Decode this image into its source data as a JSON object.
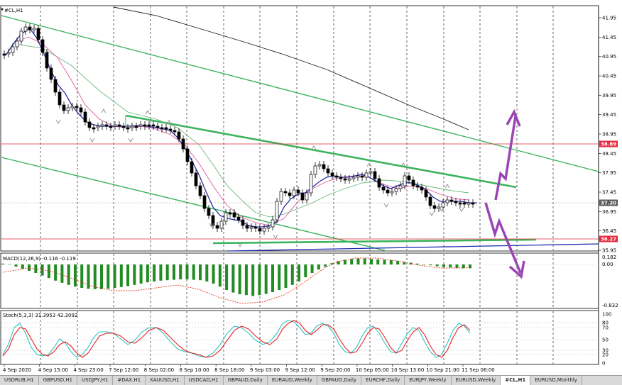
{
  "window": {
    "symbol_label": "#CL,H1"
  },
  "main": {
    "price_levels": [
      "41.95",
      "41.45",
      "40.95",
      "40.45",
      "39.95",
      "39.45",
      "38.95",
      "38.45",
      "37.95",
      "37.45",
      "36.95",
      "36.45",
      "35.95"
    ],
    "markers": [
      {
        "text": "38.69",
        "color": "#e8283c"
      },
      {
        "text": "37.20",
        "color": "#595959"
      },
      {
        "text": "36.27",
        "color": "#e8283c"
      }
    ]
  },
  "macd": {
    "label": "MACD(12,26,9) -0.116 -0.119",
    "levels": [
      "0.182",
      "0.00",
      "-0.832"
    ],
    "histogram": [
      0.02,
      0.01,
      -0.05,
      -0.1,
      -0.15,
      -0.2,
      -0.26,
      -0.32,
      -0.38,
      -0.43,
      -0.48,
      -0.52,
      -0.55,
      -0.57,
      -0.58,
      -0.58,
      -0.57,
      -0.55,
      -0.53,
      -0.51,
      -0.48,
      -0.45,
      -0.42,
      -0.4,
      -0.38,
      -0.37,
      -0.36,
      -0.35,
      -0.35,
      -0.36,
      -0.37,
      -0.4,
      -0.45,
      -0.52,
      -0.6,
      -0.66,
      -0.7,
      -0.72,
      -0.74,
      -0.72,
      -0.69,
      -0.65,
      -0.6,
      -0.55,
      -0.48,
      -0.4,
      -0.3,
      -0.2,
      -0.12,
      -0.05,
      0.03,
      0.08,
      0.11,
      0.13,
      0.14,
      0.14,
      0.13,
      0.12,
      0.11,
      0.1,
      0.08,
      0.06,
      0.04,
      0.02,
      0.0,
      -0.02,
      -0.04,
      -0.06,
      -0.07,
      -0.08,
      -0.09,
      -0.09
    ]
  },
  "stoch": {
    "label": "Stoch(5,3,3) 31.3953 42.3092",
    "levels": [
      "100",
      "80",
      "70",
      "50",
      "30",
      "20",
      "0"
    ]
  },
  "time_axis": [
    "4 Sep 2020",
    "4 Sep 15:00",
    "4 Sep 23:00",
    "7 Sep 12:00",
    "8 Sep 02:00",
    "8 Sep 10:00",
    "8 Sep 18:00",
    "9 Sep 03:00",
    "9 Sep 12:00",
    "9 Sep 20:00",
    "10 Sep 05:00",
    "10 Sep 13:00",
    "10 Sep 21:00",
    "11 Sep 06:00"
  ],
  "tabs": [
    "USDRUB,H1",
    "GBPUSD,H1",
    "USDJPY,H1",
    "#DAX,H1",
    "XAUUSD,H1",
    "USDCAD,H1",
    "GBPAUD,Daily",
    "EURAUD,Weekly",
    "GBPAUD,Daily",
    "EURCHF,Daily",
    "EURJPY,Weekly",
    "EURUSD,Weekly",
    "#CL,H1",
    "EURUSD,Monthly"
  ],
  "active_tab": "#CL,H1",
  "colors": {
    "bull_candle": "#ffffff",
    "bear_candle": "#000000",
    "channel": "#3cb35c",
    "wave_arrow": "#9b45b5",
    "support": "#1f2dad",
    "ma_slow": "#1b1b1b",
    "ma_mid": "#2a2aa8",
    "ma_fast": "#e05aa0",
    "ma_green": "#6ab87a",
    "macd_hist": "#228b22",
    "macd_signal": "#e03a1e",
    "stoch_main": "#2ec4c4",
    "stoch_signal": "#e82020"
  }
}
